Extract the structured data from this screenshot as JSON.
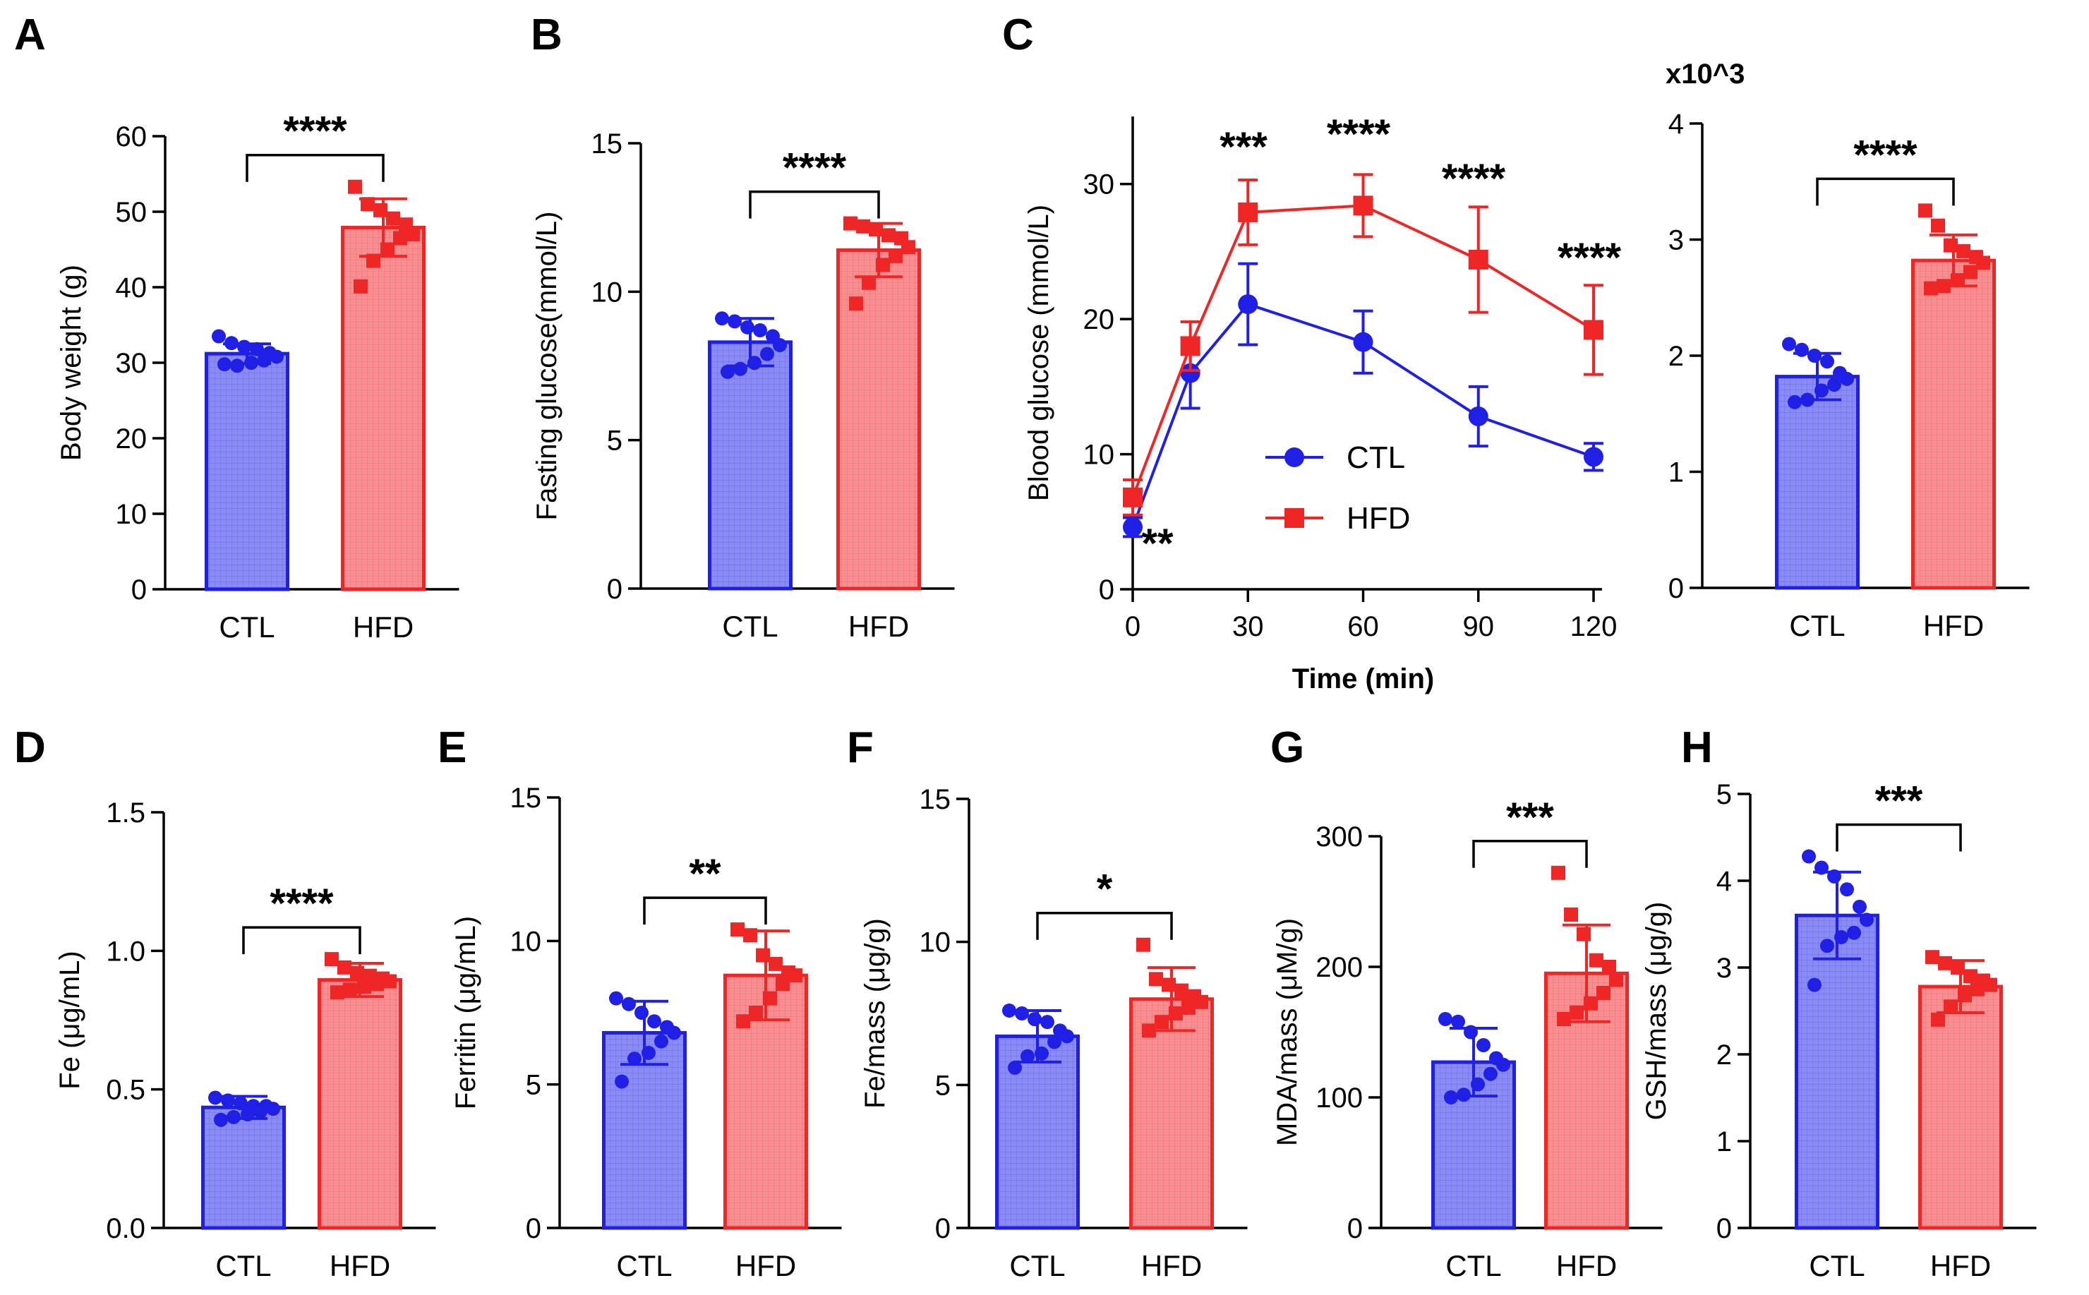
{
  "colors": {
    "ctl": "#1f1fe6",
    "hfd": "#ee2626",
    "ctl_fill": "#8a8cf2",
    "hfd_fill": "#f48f92"
  },
  "chart_data": [
    {
      "id": "A",
      "panel": "A",
      "type": "bar",
      "ylabel": "Body weight (g)",
      "ylim": [
        0,
        60
      ],
      "ticks": [
        "0",
        "10",
        "20",
        "30",
        "40",
        "50",
        "60"
      ],
      "categories": [
        "CTL",
        "HFD"
      ],
      "means": [
        31.2,
        47.9
      ],
      "sd": [
        1.3,
        3.8
      ],
      "significance": "****",
      "points": [
        [
          33.5,
          32.6,
          32.1,
          31.8,
          31.3,
          30.8,
          30.3,
          30.0,
          29.6,
          29.8
        ],
        [
          53.3,
          51.0,
          50.2,
          49.1,
          48.3,
          47.0,
          46.5,
          45.0,
          43.5,
          40.1
        ]
      ]
    },
    {
      "id": "B",
      "panel": "B",
      "type": "bar",
      "ylabel": "Fasting glucose(mmol/L)",
      "ylim": [
        0,
        15
      ],
      "ticks": [
        "0",
        "5",
        "10",
        "15"
      ],
      "categories": [
        "CTL",
        "HFD"
      ],
      "means": [
        8.3,
        11.4
      ],
      "sd": [
        0.8,
        0.9
      ],
      "significance": "****",
      "points": [
        [
          9.1,
          9.0,
          8.8,
          8.7,
          8.5,
          8.2,
          7.9,
          7.6,
          7.4,
          7.3
        ],
        [
          12.3,
          12.2,
          12.1,
          11.9,
          11.8,
          11.5,
          11.2,
          10.9,
          10.3,
          9.6
        ]
      ]
    },
    {
      "id": "C",
      "panel": "C",
      "type": "line",
      "xlabel": "Time (min)",
      "ylabel": "Blood glucose (mmol/L)",
      "ylim": [
        0,
        35
      ],
      "xlim": [
        0,
        120
      ],
      "x": [
        0,
        15,
        30,
        60,
        90,
        120
      ],
      "xticks": [
        "0",
        "30",
        "60",
        "90",
        "120"
      ],
      "yticks": [
        "0",
        "10",
        "20",
        "30"
      ],
      "series": [
        {
          "name": "CTL",
          "values": [
            4.6,
            16.0,
            21.1,
            18.3,
            12.8,
            9.8
          ],
          "sd": [
            0.7,
            2.6,
            3.0,
            2.3,
            2.2,
            1.0
          ]
        },
        {
          "name": "HFD",
          "values": [
            6.8,
            18.0,
            27.9,
            28.4,
            24.4,
            19.2
          ],
          "sd": [
            1.3,
            1.8,
            2.4,
            2.3,
            3.9,
            3.3
          ]
        }
      ],
      "annotations": [
        "**",
        "***",
        "****",
        "****",
        "****"
      ]
    },
    {
      "id": "AUC",
      "panel": "",
      "type": "bar",
      "multiplier": "x10^3",
      "ylabel": "",
      "ylim": [
        0,
        4
      ],
      "ticks": [
        "0",
        "1",
        "2",
        "3",
        "4"
      ],
      "categories": [
        "CTL",
        "HFD"
      ],
      "means": [
        1.82,
        2.82
      ],
      "sd": [
        0.2,
        0.22
      ],
      "significance": "****",
      "points": [
        [
          2.1,
          2.05,
          2.0,
          1.95,
          1.85,
          1.8,
          1.75,
          1.7,
          1.62,
          1.6
        ],
        [
          3.25,
          3.12,
          2.95,
          2.9,
          2.85,
          2.8,
          2.72,
          2.65,
          2.6,
          2.58
        ]
      ]
    },
    {
      "id": "D",
      "panel": "D",
      "type": "bar",
      "ylabel": "Fe (μg/mL)",
      "ylim": [
        0,
        1.5
      ],
      "ticks": [
        "0.0",
        "0.5",
        "1.0",
        "1.5"
      ],
      "categories": [
        "CTL",
        "HFD"
      ],
      "means": [
        0.435,
        0.895
      ],
      "sd": [
        0.04,
        0.06
      ],
      "significance": "****",
      "points": [
        [
          0.47,
          0.46,
          0.45,
          0.44,
          0.44,
          0.43,
          0.42,
          0.41,
          0.4,
          0.39
        ],
        [
          0.97,
          0.94,
          0.92,
          0.91,
          0.9,
          0.89,
          0.88,
          0.87,
          0.86,
          0.85
        ]
      ]
    },
    {
      "id": "E",
      "panel": "E",
      "type": "bar",
      "ylabel": "Ferritin (μg/mL)",
      "ylim": [
        0,
        15
      ],
      "ticks": [
        "0",
        "5",
        "10",
        "15"
      ],
      "categories": [
        "CTL",
        "HFD"
      ],
      "means": [
        6.8,
        8.8
      ],
      "sd": [
        1.1,
        1.55
      ],
      "significance": "**",
      "points": [
        [
          8.0,
          7.8,
          7.5,
          7.2,
          7.0,
          6.8,
          6.5,
          6.1,
          5.9,
          5.1
        ],
        [
          10.4,
          10.2,
          9.5,
          9.2,
          8.9,
          8.8,
          8.5,
          8.0,
          7.5,
          7.2
        ]
      ]
    },
    {
      "id": "F",
      "panel": "F",
      "type": "bar",
      "ylabel": "Fe/mass (μg/g)",
      "ylim": [
        0,
        15
      ],
      "ticks": [
        "0",
        "5",
        "10",
        "15"
      ],
      "categories": [
        "CTL",
        "HFD"
      ],
      "means": [
        6.7,
        8.0
      ],
      "sd": [
        0.9,
        1.1
      ],
      "significance": "*",
      "points": [
        [
          7.6,
          7.5,
          7.3,
          7.2,
          6.9,
          6.7,
          6.5,
          6.1,
          6.0,
          5.6
        ],
        [
          9.9,
          8.7,
          8.5,
          8.3,
          8.1,
          7.9,
          7.7,
          7.5,
          7.2,
          6.9
        ]
      ]
    },
    {
      "id": "G",
      "panel": "G",
      "type": "bar",
      "ylabel": "MDA/mass (μM/g)",
      "ylim": [
        0,
        300
      ],
      "ticks": [
        "0",
        "100",
        "200",
        "300"
      ],
      "categories": [
        "CTL",
        "HFD"
      ],
      "means": [
        127,
        195
      ],
      "sd": [
        26,
        37
      ],
      "significance": "***",
      "points": [
        [
          160,
          158,
          150,
          140,
          130,
          125,
          118,
          110,
          102,
          100
        ],
        [
          272,
          240,
          225,
          205,
          200,
          190,
          180,
          172,
          165,
          160
        ]
      ]
    },
    {
      "id": "H",
      "panel": "H",
      "type": "bar",
      "ylabel": "GSH/mass (μg/g)",
      "ylim": [
        0,
        5
      ],
      "ticks": [
        "0",
        "1",
        "2",
        "3",
        "4",
        "5"
      ],
      "categories": [
        "CTL",
        "HFD"
      ],
      "means": [
        3.6,
        2.78
      ],
      "sd": [
        0.5,
        0.3
      ],
      "significance": "***",
      "points": [
        [
          4.28,
          4.15,
          4.05,
          3.9,
          3.7,
          3.55,
          3.4,
          3.35,
          3.25,
          2.8
        ],
        [
          3.12,
          3.05,
          3.0,
          2.9,
          2.85,
          2.8,
          2.75,
          2.68,
          2.55,
          2.4
        ]
      ]
    }
  ]
}
